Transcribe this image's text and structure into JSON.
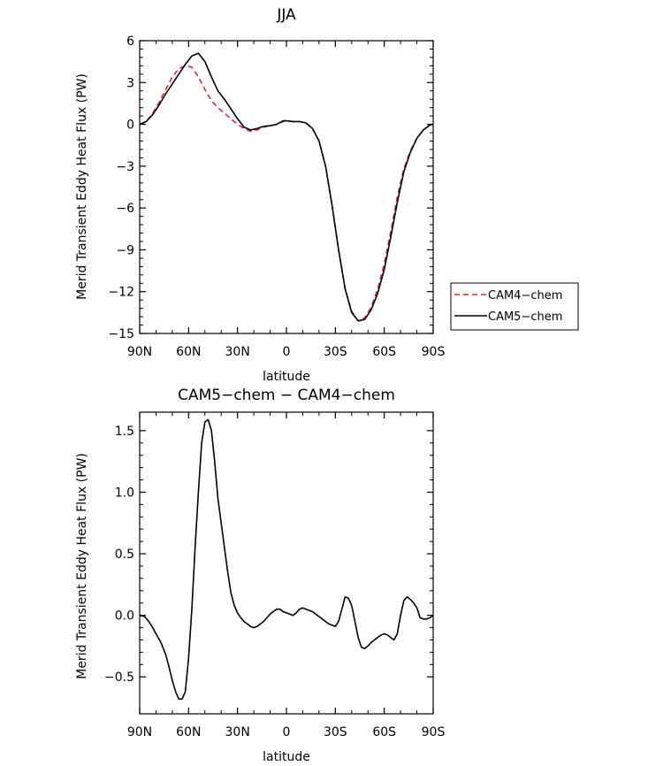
{
  "chart_data": [
    {
      "type": "line",
      "title": "JJA",
      "xlabel": "latitude",
      "ylabel": "Merid Transient Eddy Heat Flux (PW)",
      "xlim": [
        90,
        -90
      ],
      "ylim": [
        -15,
        6
      ],
      "xticks": [
        90,
        60,
        30,
        0,
        -30,
        -60,
        -90
      ],
      "xtick_labels": [
        "90N",
        "60N",
        "30N",
        "0",
        "30S",
        "60S",
        "90S"
      ],
      "yticks": [
        -15,
        -12,
        -9,
        -6,
        -3,
        0,
        3,
        6
      ],
      "ytick_labels": [
        "−15",
        "−12",
        "−9",
        "−6",
        "−3",
        "0",
        "3",
        "6"
      ],
      "legend": {
        "placement": "right",
        "entries": [
          {
            "name": "CAM4−chem",
            "color": "#e8262d",
            "dash": "dashed"
          },
          {
            "name": "CAM5−chem",
            "color": "#000000",
            "dash": "solid"
          }
        ]
      },
      "series": [
        {
          "name": "CAM4−chem",
          "color": "#e8262d",
          "dash": "dashed",
          "x": [
            90,
            86,
            82,
            78,
            74,
            70,
            66,
            62,
            58,
            54,
            50,
            46,
            42,
            38,
            34,
            30,
            26,
            22,
            18,
            14,
            10,
            6,
            2,
            0,
            -4,
            -8,
            -12,
            -16,
            -20,
            -24,
            -28,
            -32,
            -36,
            -40,
            -44,
            -48,
            -52,
            -56,
            -60,
            -64,
            -68,
            -72,
            -76,
            -80,
            -84,
            -88,
            -90
          ],
          "y": [
            0,
            0.2,
            0.8,
            1.6,
            2.5,
            3.4,
            4.0,
            4.2,
            4.1,
            3.4,
            2.5,
            1.7,
            1.2,
            0.8,
            0.4,
            0,
            -0.3,
            -0.5,
            -0.4,
            -0.2,
            -0.1,
            0,
            0.2,
            0.25,
            0.2,
            0.2,
            0.1,
            -0.3,
            -1.2,
            -3.0,
            -5.8,
            -9.0,
            -11.8,
            -13.4,
            -14.1,
            -13.9,
            -13.1,
            -11.8,
            -10.0,
            -7.7,
            -5.2,
            -3.2,
            -1.9,
            -1.0,
            -0.4,
            -0.05,
            0
          ]
        },
        {
          "name": "CAM5−chem",
          "color": "#000000",
          "dash": "solid",
          "x": [
            90,
            86,
            82,
            78,
            74,
            70,
            66,
            62,
            58,
            54,
            50,
            46,
            42,
            38,
            34,
            30,
            26,
            22,
            18,
            14,
            10,
            6,
            2,
            0,
            -4,
            -8,
            -12,
            -16,
            -20,
            -24,
            -28,
            -32,
            -36,
            -40,
            -44,
            -48,
            -52,
            -56,
            -60,
            -64,
            -68,
            -72,
            -76,
            -80,
            -84,
            -88,
            -90
          ],
          "y": [
            0,
            0.2,
            0.7,
            1.4,
            2.2,
            2.9,
            3.6,
            4.3,
            4.9,
            5.1,
            4.5,
            3.4,
            2.4,
            1.8,
            1.1,
            0.4,
            -0.2,
            -0.4,
            -0.3,
            -0.15,
            -0.1,
            0,
            0.25,
            0.25,
            0.2,
            0.2,
            0.1,
            -0.3,
            -1.2,
            -3.0,
            -5.8,
            -9.0,
            -11.8,
            -13.5,
            -14.1,
            -14.0,
            -13.3,
            -12.1,
            -10.4,
            -8.1,
            -5.6,
            -3.4,
            -2.0,
            -1.0,
            -0.4,
            -0.05,
            0
          ]
        }
      ]
    },
    {
      "type": "line",
      "title": "CAM5−chem − CAM4−chem",
      "xlabel": "latitude",
      "ylabel": "Merid Transient Eddy Heat Flux (PW)",
      "xlim": [
        90,
        -90
      ],
      "ylim": [
        -0.8,
        1.65
      ],
      "xticks": [
        90,
        60,
        30,
        0,
        -30,
        -60,
        -90
      ],
      "xtick_labels": [
        "90N",
        "60N",
        "30N",
        "0",
        "30S",
        "60S",
        "90S"
      ],
      "yticks": [
        -0.5,
        0.0,
        0.5,
        1.0,
        1.5
      ],
      "ytick_labels": [
        "−0.5",
        "0.0",
        "0.5",
        "1.0",
        "1.5"
      ],
      "series": [
        {
          "name": "",
          "color": "#000000",
          "dash": "solid",
          "x": [
            90,
            87,
            85,
            82,
            80,
            77,
            74,
            72,
            70,
            68,
            66,
            64,
            62,
            60,
            58,
            56,
            54,
            52,
            50,
            48,
            46,
            44,
            42,
            40,
            38,
            36,
            34,
            32,
            30,
            28,
            26,
            24,
            22,
            20,
            18,
            16,
            14,
            12,
            10,
            8,
            6,
            4,
            2,
            0,
            -2,
            -4,
            -6,
            -8,
            -10,
            -12,
            -14,
            -16,
            -18,
            -20,
            -22,
            -24,
            -26,
            -28,
            -30,
            -32,
            -34,
            -36,
            -38,
            -40,
            -42,
            -44,
            -46,
            -48,
            -50,
            -52,
            -54,
            -56,
            -58,
            -60,
            -62,
            -64,
            -66,
            -68,
            -70,
            -72,
            -74,
            -76,
            -78,
            -80,
            -82,
            -84,
            -86,
            -88,
            -90
          ],
          "y": [
            0,
            -0.01,
            -0.04,
            -0.1,
            -0.15,
            -0.22,
            -0.32,
            -0.42,
            -0.53,
            -0.62,
            -0.68,
            -0.68,
            -0.62,
            -0.35,
            0.05,
            0.55,
            1.0,
            1.4,
            1.57,
            1.59,
            1.5,
            1.25,
            0.95,
            0.75,
            0.55,
            0.35,
            0.18,
            0.08,
            0.02,
            -0.02,
            -0.05,
            -0.07,
            -0.09,
            -0.1,
            -0.09,
            -0.07,
            -0.05,
            -0.02,
            0.01,
            0.03,
            0.05,
            0.05,
            0.03,
            0.02,
            0.01,
            0.0,
            0.02,
            0.05,
            0.06,
            0.05,
            0.04,
            0.03,
            0.01,
            -0.01,
            -0.03,
            -0.05,
            -0.07,
            -0.08,
            -0.09,
            -0.05,
            0.05,
            0.15,
            0.14,
            0.08,
            -0.05,
            -0.18,
            -0.26,
            -0.27,
            -0.25,
            -0.22,
            -0.2,
            -0.18,
            -0.16,
            -0.15,
            -0.16,
            -0.18,
            -0.2,
            -0.15,
            0.0,
            0.12,
            0.15,
            0.13,
            0.1,
            0.06,
            -0.02,
            -0.03,
            -0.03,
            -0.02,
            0
          ]
        }
      ]
    }
  ]
}
